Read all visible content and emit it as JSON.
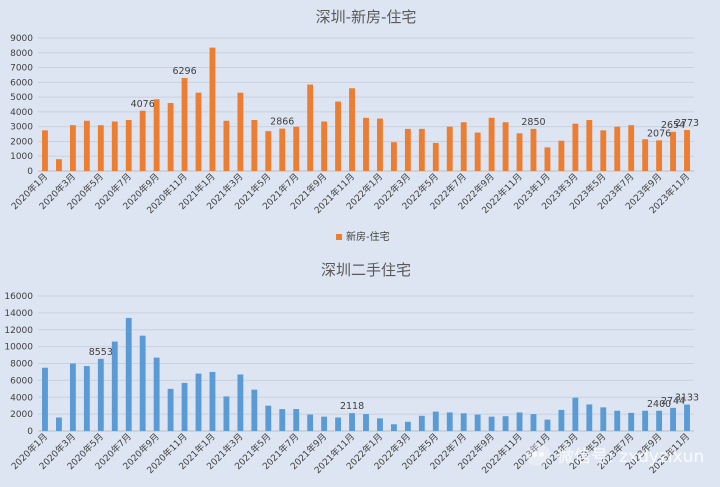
{
  "chart_data": [
    {
      "type": "bar",
      "title": "深圳-新房-住宅",
      "series": [
        {
          "name": "新房-住宅",
          "color": "#ed7d31",
          "values": [
            2750,
            800,
            3100,
            3400,
            3100,
            3350,
            3450,
            4076,
            4850,
            4600,
            6296,
            5300,
            8350,
            3400,
            5300,
            3450,
            2700,
            2866,
            3000,
            5850,
            3350,
            4700,
            5600,
            3600,
            3550,
            1950,
            2850,
            2850,
            1900,
            3000,
            3300,
            2600,
            3600,
            3300,
            2550,
            2850,
            1600,
            2050,
            3200,
            3450,
            2750,
            3000,
            3100,
            2150,
            2076,
            2654,
            2773
          ]
        }
      ],
      "data_labels": [
        {
          "index": 7,
          "text": "4076"
        },
        {
          "index": 10,
          "text": "6296"
        },
        {
          "index": 17,
          "text": "2866"
        },
        {
          "index": 35,
          "text": "2850"
        },
        {
          "index": 44,
          "text": "2076"
        },
        {
          "index": 45,
          "text": "2654"
        },
        {
          "index": 46,
          "text": "2773"
        }
      ],
      "ylim": [
        0,
        9000
      ],
      "yticks": [
        "0",
        "1000",
        "2000",
        "3000",
        "4000",
        "5000",
        "6000",
        "7000",
        "8000",
        "9000"
      ],
      "xtick_labels": [
        "2020年1月",
        "2020年3月",
        "2020年5月",
        "2020年7月",
        "2020年9月",
        "2020年11月",
        "2021年1月",
        "2021年3月",
        "2021年5月",
        "2021年7月",
        "2021年9月",
        "2021年11月",
        "2022年1月",
        "2022年3月",
        "2022年5月",
        "2022年7月",
        "2022年9月",
        "2022年11月",
        "2023年1月",
        "2023年3月",
        "2023年5月",
        "2023年7月",
        "2023年9月",
        "2023年11月"
      ],
      "legend": {
        "label": "新房-住宅",
        "position": "bottom"
      },
      "grid": true
    },
    {
      "type": "bar",
      "title": "深圳二手住宅",
      "series": [
        {
          "name": "",
          "color": "#5b9bd5",
          "values": [
            7500,
            1600,
            8000,
            7700,
            8553,
            10600,
            13400,
            11300,
            8700,
            5000,
            5700,
            6800,
            7000,
            4100,
            6700,
            4900,
            3000,
            2600,
            2600,
            1950,
            1700,
            1600,
            2118,
            2000,
            1500,
            800,
            1100,
            1800,
            2300,
            2200,
            2100,
            1950,
            1700,
            1750,
            2200,
            2000,
            1350,
            2500,
            3950,
            3150,
            2800,
            2400,
            2150,
            2400,
            2400,
            2744,
            3133
          ]
        }
      ],
      "data_labels": [
        {
          "index": 4,
          "text": "8553"
        },
        {
          "index": 22,
          "text": "2118"
        },
        {
          "index": 44,
          "text": "2400"
        },
        {
          "index": 45,
          "text": "2744"
        },
        {
          "index": 46,
          "text": "3133"
        }
      ],
      "ylim": [
        0,
        16000
      ],
      "yticks": [
        "0",
        "2000",
        "4000",
        "6000",
        "8000",
        "10000",
        "12000",
        "14000",
        "16000"
      ],
      "xtick_labels": [
        "2020年1月",
        "2020年3月",
        "2020年5月",
        "2020年7月",
        "2020年9月",
        "2020年11月",
        "2021年1月",
        "2021年3月",
        "2021年5月",
        "2021年7月",
        "2021年9月",
        "2021年11月",
        "2022年1月",
        "2022年3月",
        "2022年5月",
        "2022年7月",
        "2022年9月",
        "2022年11月",
        "2023年1月",
        "2023年3月",
        "2023年5月",
        "2023年7月",
        "2023年9月",
        "2023年11月"
      ],
      "grid": true
    }
  ],
  "watermark": {
    "text": "微信号: zxdyzixun"
  }
}
